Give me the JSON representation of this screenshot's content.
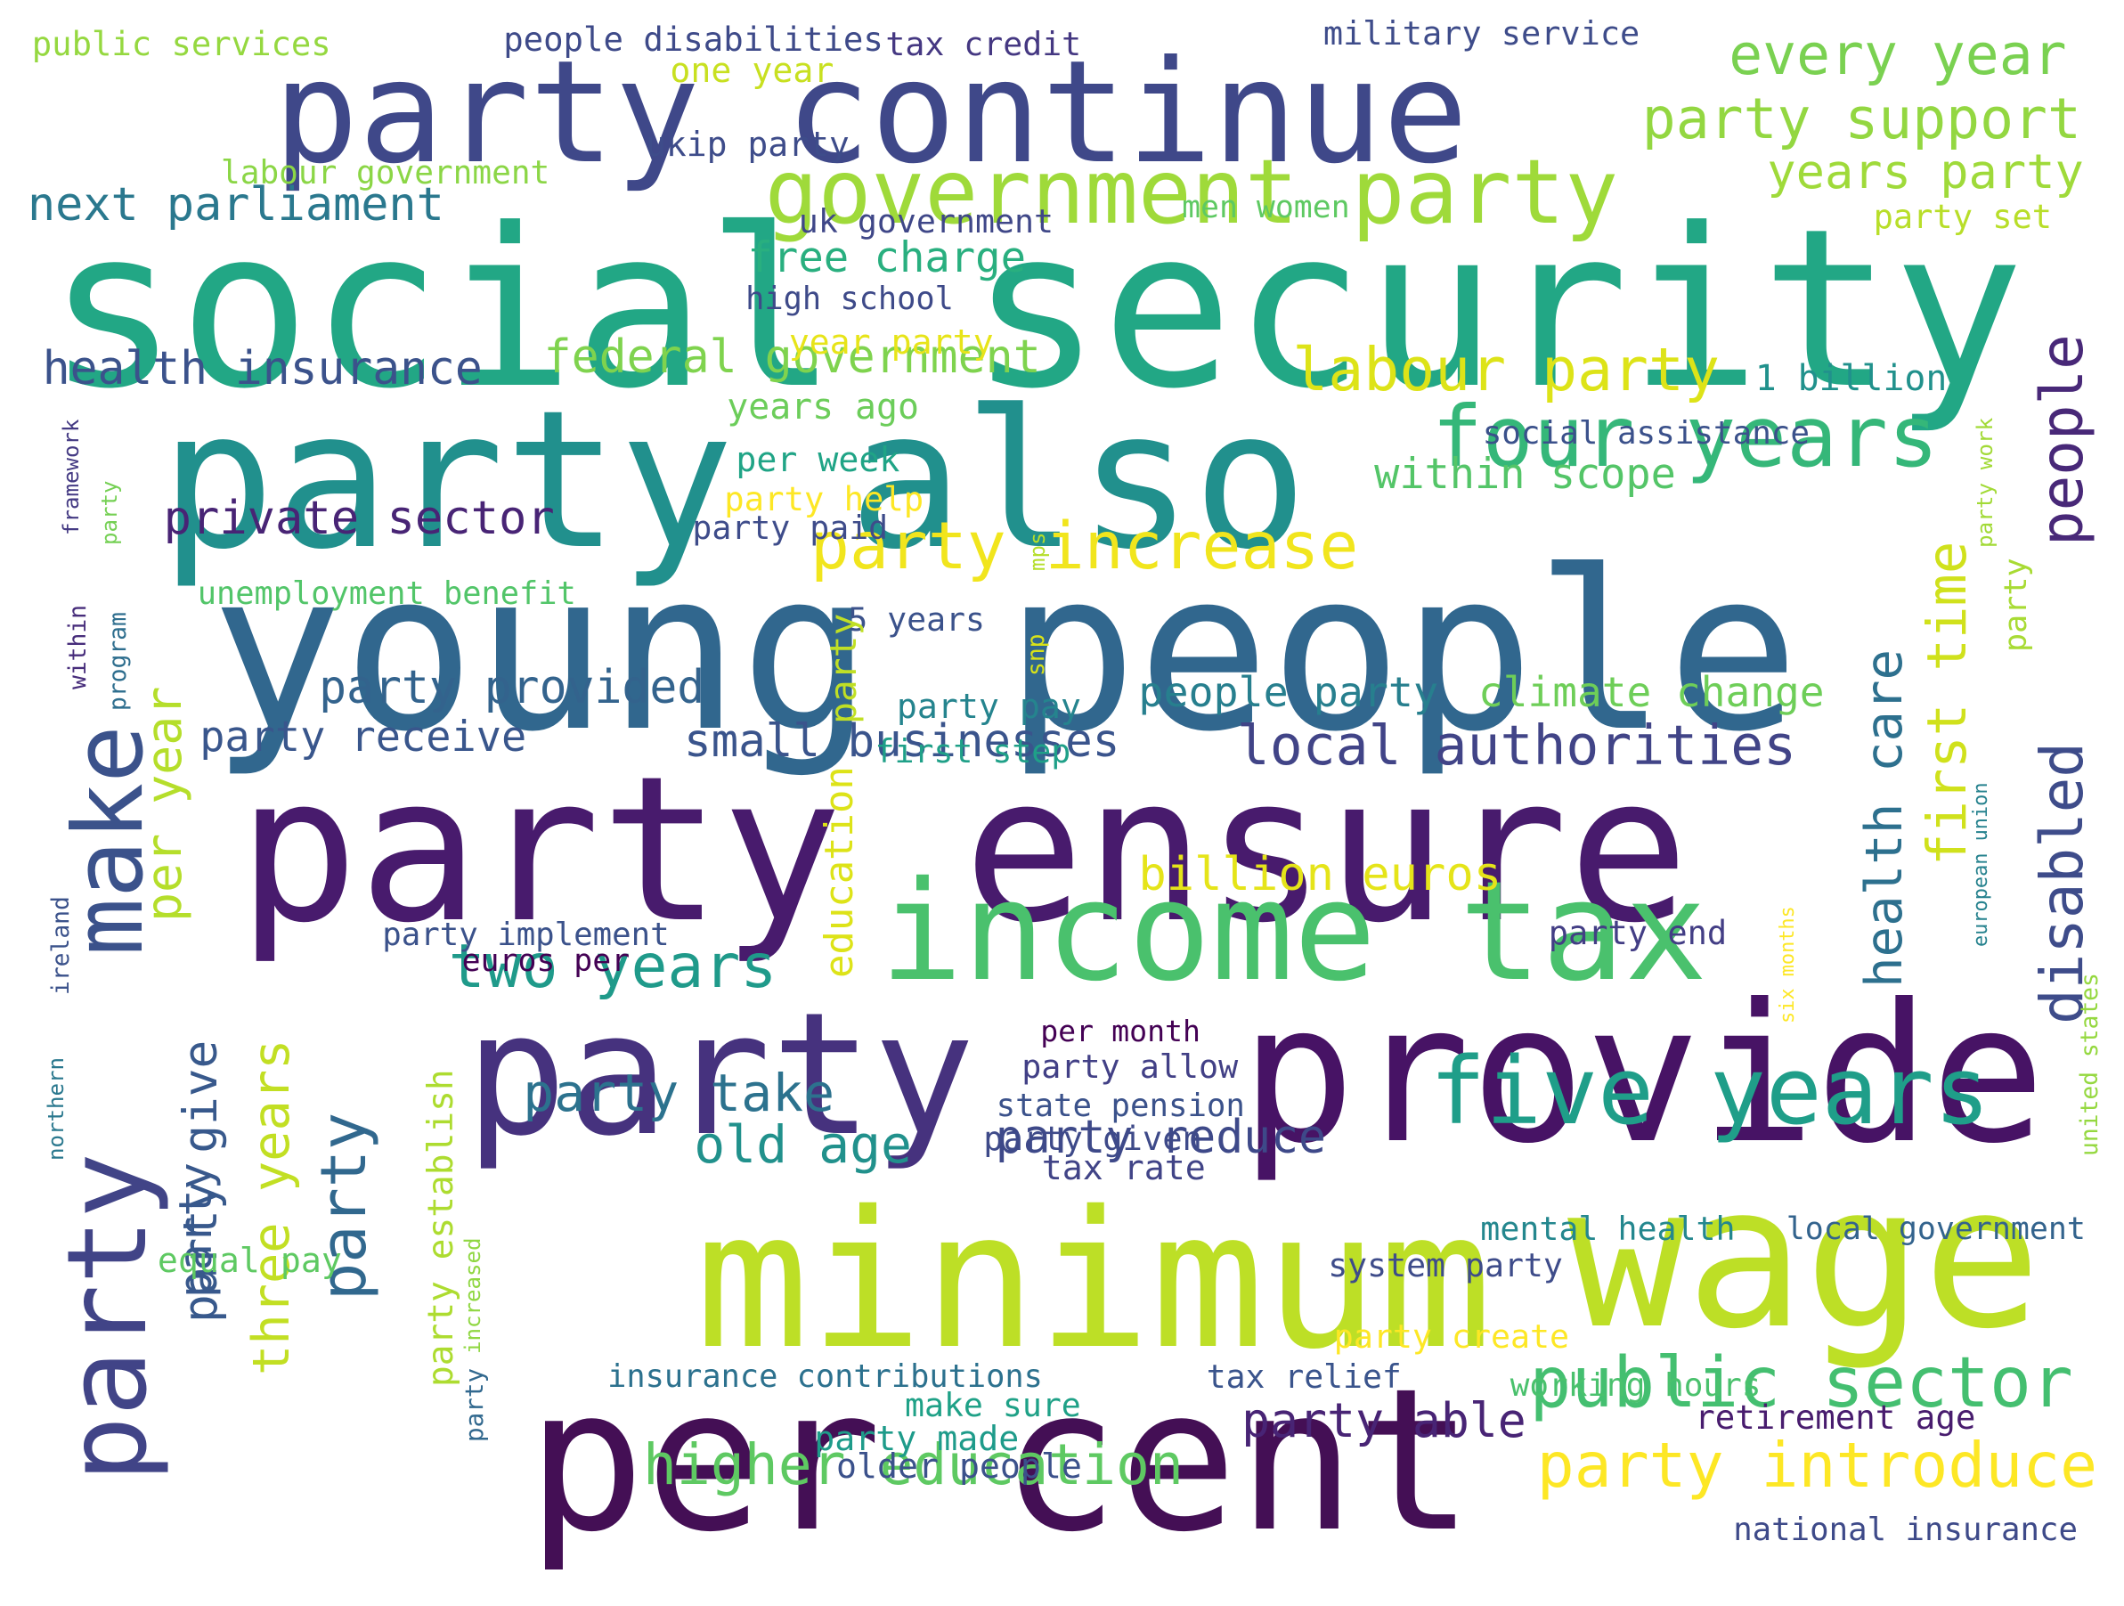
{
  "words": [
    {
      "text": "social security",
      "color": "#22a785"
    },
    {
      "text": "young people",
      "color": "#31678e"
    },
    {
      "text": "party ensure",
      "color": "#481b6d"
    },
    {
      "text": "party also",
      "color": "#21908d"
    },
    {
      "text": "minimum",
      "color": "#bddf26"
    },
    {
      "text": "party continue",
      "color": "#3f4889"
    },
    {
      "text": "provide",
      "color": "#471365"
    },
    {
      "text": "per cent",
      "color": "#440f55"
    },
    {
      "text": "party",
      "color": "#46327e"
    },
    {
      "text": "wage",
      "color": "#bddf26"
    },
    {
      "text": "income tax",
      "color": "#4ac16d"
    },
    {
      "text": "make",
      "color": "#3b528b"
    },
    {
      "text": "party",
      "color": "#414487"
    },
    {
      "text": "five years",
      "color": "#1f9e89"
    },
    {
      "text": "government party",
      "color": "#9fda3a"
    },
    {
      "text": "four years",
      "color": "#35b779"
    },
    {
      "text": "people",
      "color": "#482878"
    },
    {
      "text": "disabled",
      "color": "#3e4c8a"
    },
    {
      "text": "party",
      "color": "#31688e"
    },
    {
      "text": "party",
      "color": "#38588c"
    },
    {
      "text": "public sector",
      "color": "#44bf70"
    },
    {
      "text": "party introduce",
      "color": "#fde725"
    },
    {
      "text": "first time",
      "color": "#d0e11c"
    },
    {
      "text": "health care",
      "color": "#2d708e"
    },
    {
      "text": "higher education",
      "color": "#5ec962"
    },
    {
      "text": "party increase",
      "color": "#f1e51d"
    },
    {
      "text": "two years",
      "color": "#1f9a8a"
    },
    {
      "text": "every year",
      "color": "#7ad151"
    },
    {
      "text": "party support",
      "color": "#93d741"
    },
    {
      "text": "labour party",
      "color": "#dde318"
    },
    {
      "text": "local authorities",
      "color": "#414487"
    },
    {
      "text": "party take",
      "color": "#2c728e"
    },
    {
      "text": "party reduce",
      "color": "#3e4989"
    },
    {
      "text": "party able",
      "color": "#482475"
    },
    {
      "text": "three years",
      "color": "#c2df23"
    },
    {
      "text": "party give",
      "color": "#38598c"
    },
    {
      "text": "party establish",
      "color": "#addc30"
    },
    {
      "text": "per year",
      "color": "#b5de2b"
    },
    {
      "text": "years party",
      "color": "#9fda3a"
    },
    {
      "text": "next parliament",
      "color": "#2a788e"
    },
    {
      "text": "health insurance",
      "color": "#3b528b"
    },
    {
      "text": "private sector",
      "color": "#482475"
    },
    {
      "text": "federal government",
      "color": "#7fd34e"
    },
    {
      "text": "small businesses",
      "color": "#3a548c"
    },
    {
      "text": "party provided",
      "color": "#33638d"
    },
    {
      "text": "party receive",
      "color": "#39568c"
    },
    {
      "text": "people party",
      "color": "#277f8e"
    },
    {
      "text": "climate change",
      "color": "#6ece58"
    },
    {
      "text": "billion euros",
      "color": "#e5e419"
    },
    {
      "text": "old age",
      "color": "#21918c"
    },
    {
      "text": "within scope",
      "color": "#54c568"
    },
    {
      "text": "free charge",
      "color": "#29af7f"
    },
    {
      "text": "high school",
      "color": "#3e4a89"
    },
    {
      "text": "uk government",
      "color": "#3f4788"
    },
    {
      "text": "men women",
      "color": "#5ec962"
    },
    {
      "text": "ukip party",
      "color": "#3e4c8a"
    },
    {
      "text": "one year",
      "color": "#c8e020"
    },
    {
      "text": "labour government",
      "color": "#8bd646"
    },
    {
      "text": "public services",
      "color": "#95d840"
    },
    {
      "text": "people disabilities",
      "color": "#3e4a89"
    },
    {
      "text": "tax credit",
      "color": "#453882"
    },
    {
      "text": "military service",
      "color": "#3e4c8a"
    },
    {
      "text": "party set",
      "color": "#b8de29"
    },
    {
      "text": "1 billion",
      "color": "#21918c"
    },
    {
      "text": "social assistance",
      "color": "#3b518b"
    },
    {
      "text": "year party",
      "color": "#e7e419"
    },
    {
      "text": "years ago",
      "color": "#6ccd5a"
    },
    {
      "text": "per week",
      "color": "#20a486"
    },
    {
      "text": "party help",
      "color": "#fde725"
    },
    {
      "text": "party paid",
      "color": "#3e4c8a"
    },
    {
      "text": "unemployment benefit",
      "color": "#52c569"
    },
    {
      "text": "5 years",
      "color": "#3b528b"
    },
    {
      "text": "party pay",
      "color": "#25848e"
    },
    {
      "text": "first step",
      "color": "#1fa088"
    },
    {
      "text": "party implement",
      "color": "#3b528b"
    },
    {
      "text": "euros per",
      "color": "#440154"
    },
    {
      "text": "party end",
      "color": "#433e85"
    },
    {
      "text": "per month",
      "color": "#440154"
    },
    {
      "text": "party allow",
      "color": "#424086"
    },
    {
      "text": "state pension",
      "color": "#3b528b"
    },
    {
      "text": "party given",
      "color": "#3e4a89"
    },
    {
      "text": "tax rate",
      "color": "#414487"
    },
    {
      "text": "mental health",
      "color": "#24878e"
    },
    {
      "text": "local government",
      "color": "#33638d"
    },
    {
      "text": "system party",
      "color": "#3e4c8a"
    },
    {
      "text": "party create",
      "color": "#fde725"
    },
    {
      "text": "equal pay",
      "color": "#5ec962"
    },
    {
      "text": "insurance contributions",
      "color": "#2c718e"
    },
    {
      "text": "tax relief",
      "color": "#3a548c"
    },
    {
      "text": "working hours",
      "color": "#4ac16d"
    },
    {
      "text": "make sure",
      "color": "#1fa187"
    },
    {
      "text": "retirement age",
      "color": "#481c6e"
    },
    {
      "text": "party made",
      "color": "#1e9b8a"
    },
    {
      "text": "older people",
      "color": "#3b518b"
    },
    {
      "text": "national insurance",
      "color": "#3e4a89"
    },
    {
      "text": "framework",
      "color": "#443a83"
    },
    {
      "text": "party",
      "color": "#75d054"
    },
    {
      "text": "mps",
      "color": "#b5de2b"
    },
    {
      "text": "snp",
      "color": "#d8e219"
    },
    {
      "text": "party",
      "color": "#c0df25"
    },
    {
      "text": "education",
      "color": "#dde318"
    },
    {
      "text": "within",
      "color": "#472d7b"
    },
    {
      "text": "program",
      "color": "#2e6e8e"
    },
    {
      "text": "ireland",
      "color": "#3b528b"
    },
    {
      "text": "northern",
      "color": "#2a788e"
    },
    {
      "text": "increased",
      "color": "#90d743"
    },
    {
      "text": "party",
      "color": "#31688e"
    },
    {
      "text": "party work",
      "color": "#a2da37"
    },
    {
      "text": "party",
      "color": "#a8db34"
    },
    {
      "text": "european union",
      "color": "#26828e"
    },
    {
      "text": "six months",
      "color": "#fde725"
    },
    {
      "text": "united states",
      "color": "#95d840"
    }
  ]
}
